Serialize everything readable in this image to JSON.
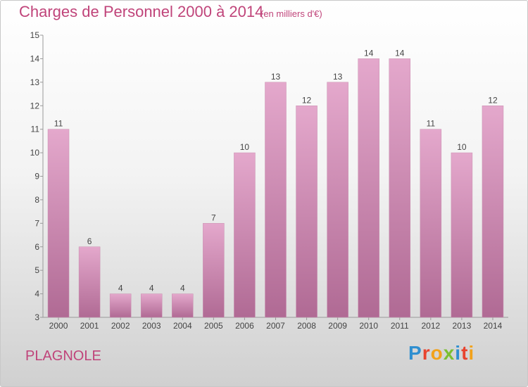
{
  "header": {
    "title": "Charges de Personnel 2000 à 2014",
    "subtitle": "(en milliers d'€)"
  },
  "footer": {
    "place": "PLAGNOLE",
    "logo_text": "Proxiti"
  },
  "colors": {
    "bar_top": "#e4a8cc",
    "bar_bottom": "#b06a94",
    "title": "#c0447a",
    "logo": [
      "#2f8fd0",
      "#e8432e",
      "#f2a21b",
      "#7cbf31",
      "#2f8fd0",
      "#e8432e",
      "#f2a21b"
    ]
  },
  "chart_data": {
    "type": "bar",
    "categories": [
      "2000",
      "2001",
      "2002",
      "2003",
      "2004",
      "2005",
      "2006",
      "2007",
      "2008",
      "2009",
      "2010",
      "2011",
      "2012",
      "2013",
      "2014"
    ],
    "values": [
      11,
      6,
      4,
      4,
      4,
      7,
      10,
      13,
      12,
      13,
      14,
      14,
      11,
      10,
      12
    ],
    "ylim": [
      3,
      15
    ],
    "yticks": [
      3,
      4,
      5,
      6,
      7,
      8,
      9,
      10,
      11,
      12,
      13,
      14,
      15
    ],
    "grid": false
  }
}
